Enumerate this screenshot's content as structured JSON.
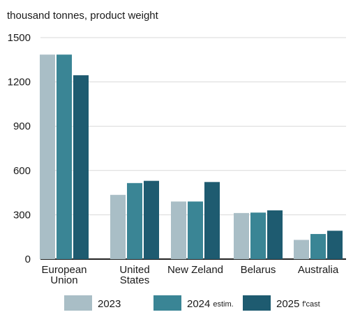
{
  "chart_data": {
    "type": "bar",
    "unit_label": "thousand tonnes, product weight",
    "categories": [
      [
        "European",
        "Union"
      ],
      [
        "United",
        "States"
      ],
      [
        "New Zeland"
      ],
      [
        "Belarus"
      ],
      [
        "Australia"
      ]
    ],
    "series": [
      {
        "name": "2023",
        "suffix": "",
        "color": "#a9bec6",
        "values": [
          1385,
          435,
          390,
          312,
          130
        ]
      },
      {
        "name": "2024",
        "suffix": "estim.",
        "color": "#3a8595",
        "values": [
          1385,
          515,
          390,
          315,
          170
        ]
      },
      {
        "name": "2025",
        "suffix": "f'cast",
        "color": "#1e5b70",
        "values": [
          1245,
          530,
          522,
          330,
          192
        ]
      }
    ],
    "y_ticks": [
      0,
      300,
      600,
      900,
      1200,
      1500
    ],
    "ylim": [
      0,
      1500
    ],
    "grid": true,
    "legend_position": "bottom"
  }
}
